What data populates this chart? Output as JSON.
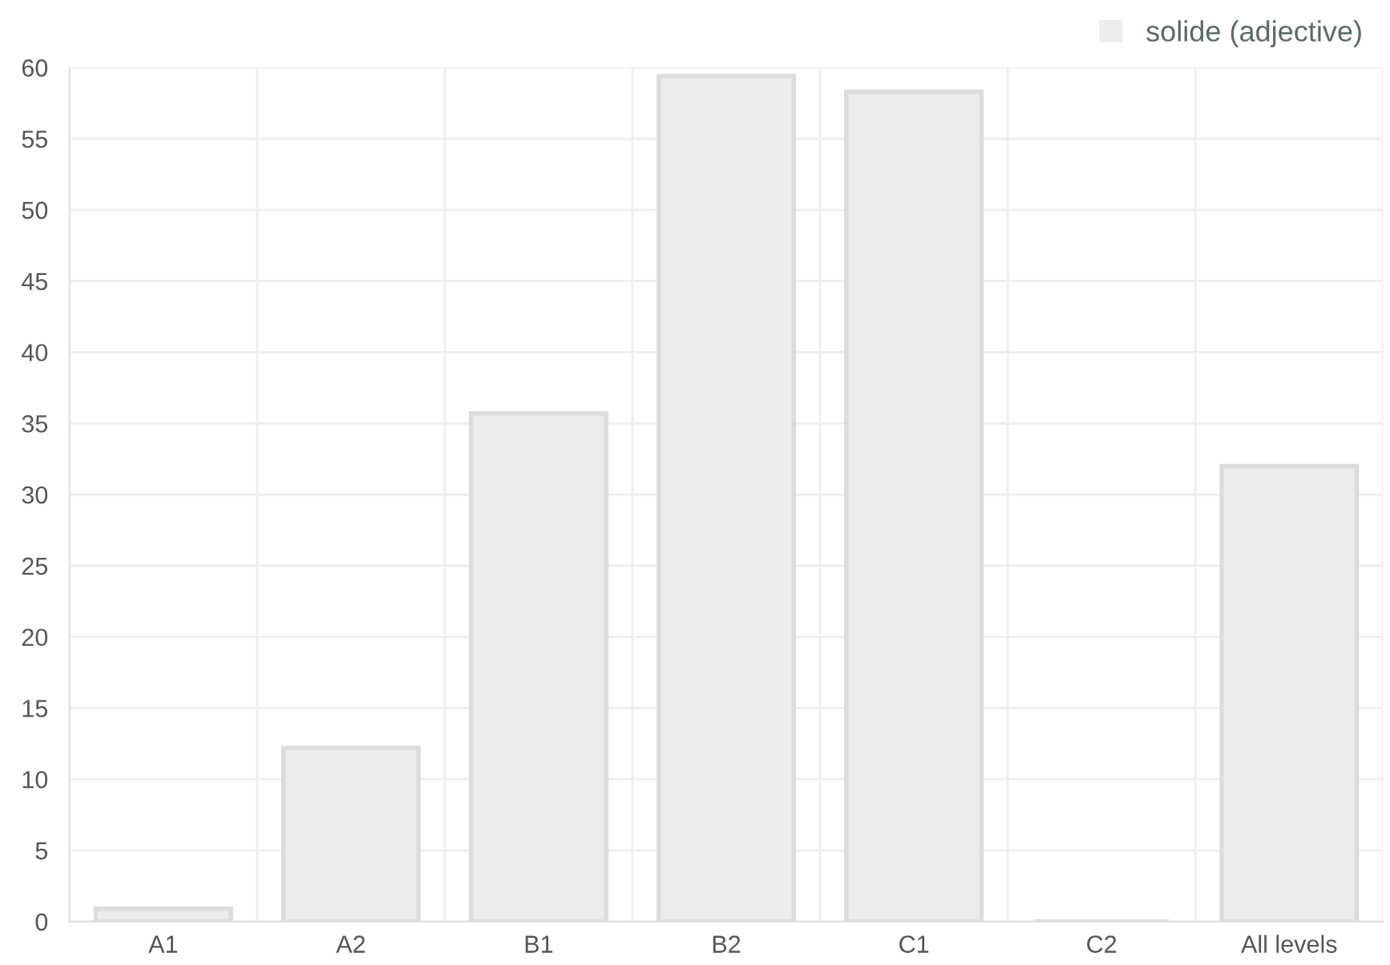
{
  "chart_data": {
    "type": "bar",
    "categories": [
      "A1",
      "A2",
      "B1",
      "B2",
      "C1",
      "C2",
      "All levels"
    ],
    "series": [
      {
        "name": "solide (adjective)",
        "color": "#ececec",
        "values": [
          0.9,
          12.2,
          35.7,
          59.4,
          58.3,
          0,
          32.0
        ]
      }
    ],
    "ylim": [
      0,
      60
    ],
    "yticks": [
      0,
      5,
      10,
      15,
      20,
      25,
      30,
      35,
      40,
      45,
      50,
      55,
      60
    ],
    "grid": true,
    "legend": "top right"
  }
}
